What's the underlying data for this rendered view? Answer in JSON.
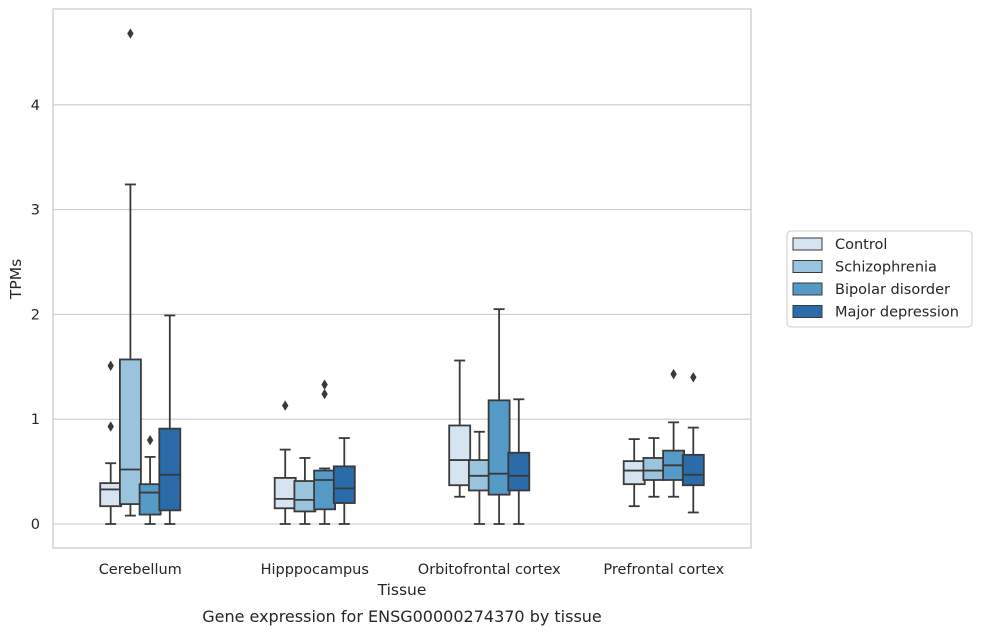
{
  "caption": "Gene expression for ENSG00000274370 by tissue",
  "chart_data": {
    "type": "box",
    "xlabel": "Tissue",
    "ylabel": "TPMs",
    "ylim": [
      -0.23,
      4.92
    ],
    "yticks": [
      0,
      1,
      2,
      3,
      4
    ],
    "grid": "horizontal",
    "legend_position": "right",
    "categories": [
      "Cerebellum",
      "Hipppocampus",
      "Orbitofrontal cortex",
      "Prefrontal cortex"
    ],
    "series": [
      {
        "name": "Control",
        "color": "#d6e4f2",
        "boxes": [
          {
            "whislo": 0.0,
            "q1": 0.17,
            "med": 0.33,
            "q3": 0.39,
            "whishi": 0.58,
            "fliers": [
              0.93,
              1.51
            ]
          },
          {
            "whislo": 0.0,
            "q1": 0.15,
            "med": 0.24,
            "q3": 0.44,
            "whishi": 0.71,
            "fliers": [
              1.13
            ]
          },
          {
            "whislo": 0.26,
            "q1": 0.37,
            "med": 0.61,
            "q3": 0.94,
            "whishi": 1.56,
            "fliers": []
          },
          {
            "whislo": 0.17,
            "q1": 0.38,
            "med": 0.51,
            "q3": 0.6,
            "whishi": 0.81,
            "fliers": []
          }
        ]
      },
      {
        "name": "Schizophrenia",
        "color": "#9ac4de",
        "boxes": [
          {
            "whislo": 0.08,
            "q1": 0.19,
            "med": 0.52,
            "q3": 1.57,
            "whishi": 3.24,
            "fliers": [
              4.68
            ]
          },
          {
            "whislo": 0.0,
            "q1": 0.12,
            "med": 0.23,
            "q3": 0.41,
            "whishi": 0.63,
            "fliers": []
          },
          {
            "whislo": 0.0,
            "q1": 0.32,
            "med": 0.46,
            "q3": 0.61,
            "whishi": 0.88,
            "fliers": []
          },
          {
            "whislo": 0.26,
            "q1": 0.42,
            "med": 0.51,
            "q3": 0.63,
            "whishi": 0.82,
            "fliers": []
          }
        ]
      },
      {
        "name": "Bipolar disorder",
        "color": "#5599c6",
        "boxes": [
          {
            "whislo": 0.0,
            "q1": 0.09,
            "med": 0.3,
            "q3": 0.38,
            "whishi": 0.64,
            "fliers": [
              0.8
            ]
          },
          {
            "whislo": 0.0,
            "q1": 0.14,
            "med": 0.42,
            "q3": 0.51,
            "whishi": 0.53,
            "fliers": [
              1.24,
              1.33
            ]
          },
          {
            "whislo": 0.0,
            "q1": 0.28,
            "med": 0.48,
            "q3": 1.18,
            "whishi": 2.05,
            "fliers": []
          },
          {
            "whislo": 0.26,
            "q1": 0.42,
            "med": 0.56,
            "q3": 0.7,
            "whishi": 0.97,
            "fliers": [
              1.43
            ]
          }
        ]
      },
      {
        "name": "Major depression",
        "color": "#2a6ba9",
        "boxes": [
          {
            "whislo": 0.0,
            "q1": 0.13,
            "med": 0.47,
            "q3": 0.91,
            "whishi": 1.99,
            "fliers": []
          },
          {
            "whislo": 0.0,
            "q1": 0.2,
            "med": 0.34,
            "q3": 0.55,
            "whishi": 0.82,
            "fliers": []
          },
          {
            "whislo": 0.0,
            "q1": 0.32,
            "med": 0.46,
            "q3": 0.68,
            "whishi": 1.19,
            "fliers": []
          },
          {
            "whislo": 0.11,
            "q1": 0.37,
            "med": 0.47,
            "q3": 0.66,
            "whishi": 0.92,
            "fliers": [
              1.4
            ]
          }
        ]
      }
    ]
  }
}
